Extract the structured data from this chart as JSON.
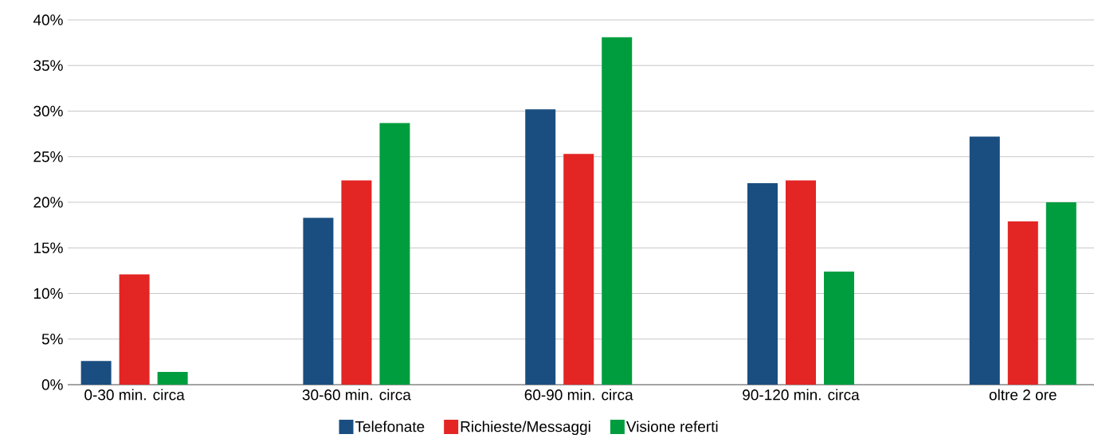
{
  "chart_data": {
    "type": "bar",
    "categories": [
      "0-30 min. circa",
      "30-60 min. circa",
      "60-90 min. circa",
      "90-120 min. circa",
      "oltre 2 ore"
    ],
    "series": [
      {
        "name": "Telefonate",
        "color": "#1a4e80",
        "values": [
          2.6,
          18.3,
          30.2,
          22.1,
          27.2
        ]
      },
      {
        "name": "Richieste/Messaggi",
        "color": "#e32524",
        "values": [
          12.1,
          22.4,
          25.3,
          22.4,
          17.9
        ]
      },
      {
        "name": "Visione referti",
        "color": "#009d3f",
        "values": [
          1.4,
          28.7,
          38.1,
          12.4,
          20.0
        ]
      }
    ],
    "ylim": [
      0,
      40
    ],
    "yticks": [
      {
        "value": 0,
        "label": "0%"
      },
      {
        "value": 5,
        "label": "5%"
      },
      {
        "value": 10,
        "label": "10%"
      },
      {
        "value": 15,
        "label": "15%"
      },
      {
        "value": 20,
        "label": "20%"
      },
      {
        "value": 25,
        "label": "25%"
      },
      {
        "value": 30,
        "label": "30%"
      },
      {
        "value": 35,
        "label": "35%"
      },
      {
        "value": 40,
        "label": "40%"
      }
    ],
    "grid": "y",
    "legend": "bottom"
  }
}
